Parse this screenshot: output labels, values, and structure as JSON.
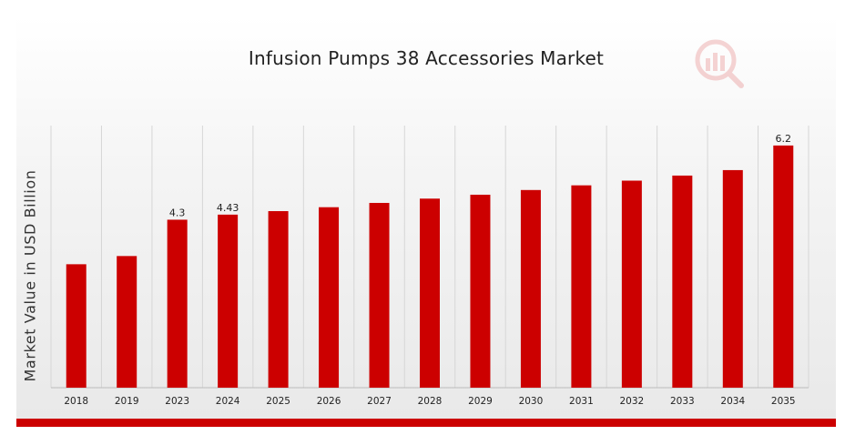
{
  "chart_data": {
    "type": "bar",
    "title": "Infusion Pumps 38 Accessories Market",
    "xlabel": "",
    "ylabel": "Market Value in USD Billion",
    "categories": [
      "2018",
      "2019",
      "2023",
      "2024",
      "2025",
      "2026",
      "2027",
      "2028",
      "2029",
      "2030",
      "2031",
      "2032",
      "2033",
      "2034",
      "2035"
    ],
    "values": [
      3.16,
      3.37,
      4.3,
      4.43,
      4.52,
      4.62,
      4.73,
      4.84,
      4.94,
      5.06,
      5.18,
      5.3,
      5.43,
      5.57,
      6.2
    ],
    "data_labels": [
      "",
      "",
      "4.3",
      "4.43",
      "",
      "",
      "",
      "",
      "",
      "",
      "",
      "",
      "",
      "",
      "6.2"
    ],
    "ylim": [
      0,
      6.5
    ],
    "grid": "vertical",
    "bar_color": "#cc0000",
    "legend": "none"
  }
}
